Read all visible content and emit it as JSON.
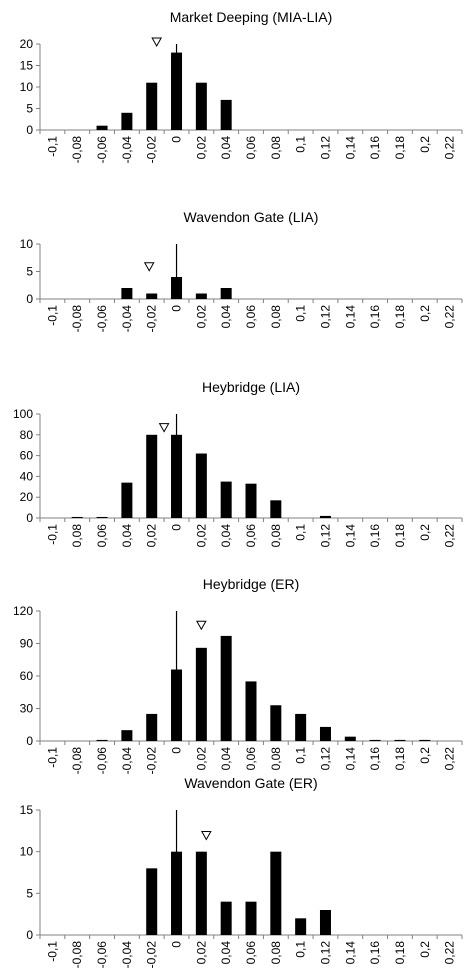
{
  "chart_data": [
    {
      "type": "bar",
      "title": "Market Deeping (MIA-LIA)",
      "categories": [
        "-0,1",
        "-0,08",
        "-0,06",
        "-0,04",
        "-0,02",
        "0",
        "0,02",
        "0,04",
        "0,06",
        "0,08",
        "0,1",
        "0,12",
        "0,14",
        "0,16",
        "0,18",
        "0,2",
        "0,22"
      ],
      "values": [
        0,
        0,
        1,
        4,
        11,
        18,
        11,
        7,
        0,
        0,
        0,
        0,
        0,
        0,
        0,
        0,
        0
      ],
      "ylim": [
        0,
        20
      ],
      "yticks": [
        "0",
        "5",
        "10",
        "15",
        "20"
      ],
      "vertical_line_category": "0",
      "vertical_line_top": 20,
      "triangle_marker": {
        "x_category_pos": 4.7,
        "value": 20
      },
      "grid": false
    },
    {
      "type": "bar",
      "title": "Wavendon Gate (LIA)",
      "categories": [
        "-0,1",
        "-0,08",
        "-0,06",
        "-0,04",
        "-0,02",
        "0",
        "0,02",
        "0,04",
        "0,06",
        "0,08",
        "0,1",
        "0,12",
        "0,14",
        "0,16",
        "0,18",
        "0,2",
        "0,22"
      ],
      "values": [
        0,
        0,
        0,
        2,
        1,
        4,
        1,
        2,
        0,
        0,
        0,
        0,
        0,
        0,
        0,
        0,
        0
      ],
      "ylim": [
        0,
        10
      ],
      "yticks": [
        "0",
        "5",
        "10"
      ],
      "vertical_line_category": "0",
      "vertical_line_top": 10,
      "triangle_marker": {
        "x_category_pos": 4.4,
        "value": 5.5
      },
      "grid": false
    },
    {
      "type": "bar",
      "title": "Heybridge (LIA)",
      "categories": [
        "-0,1",
        "0,08",
        "0,06",
        "0,04",
        "0,02",
        "0",
        "0,02",
        "0,04",
        "0,06",
        "0,08",
        "0,1",
        "0,12",
        "0,14",
        "0,16",
        "0,18",
        "0,2",
        "0,22"
      ],
      "values": [
        0,
        1,
        1,
        34,
        80,
        80,
        62,
        35,
        33,
        17,
        0,
        2,
        0,
        0,
        0,
        0,
        0
      ],
      "ylim": [
        0,
        100
      ],
      "yticks": [
        "0",
        "20",
        "40",
        "60",
        "80",
        "100"
      ],
      "vertical_line_category": "0",
      "vertical_line_top": 100,
      "triangle_marker": {
        "x_category_pos": 5.0,
        "value": 85
      },
      "grid": false
    },
    {
      "type": "bar",
      "title": "Heybridge (ER)",
      "categories": [
        "-0,1",
        "-0,08",
        "-0,06",
        "-0,04",
        "-0,02",
        "0",
        "0,02",
        "0,04",
        "0,06",
        "0,08",
        "0,1",
        "0,12",
        "0,14",
        "0,16",
        "0,18",
        "0,2",
        "0,22"
      ],
      "values": [
        0,
        0,
        1,
        10,
        25,
        66,
        86,
        97,
        55,
        33,
        25,
        13,
        4,
        1,
        1,
        1,
        0
      ],
      "ylim": [
        0,
        120
      ],
      "yticks": [
        "0",
        "30",
        "60",
        "90",
        "120"
      ],
      "vertical_line_category": "0",
      "vertical_line_top": 120,
      "triangle_marker": {
        "x_category_pos": 6.5,
        "value": 105
      },
      "grid": false
    },
    {
      "type": "bar",
      "title": "Wavendon Gate (ER)",
      "categories": [
        "-0,1",
        "-0,08",
        "-0,06",
        "-0,04",
        "-0,02",
        "0",
        "0,02",
        "0,04",
        "0,06",
        "0,08",
        "0,1",
        "0,12",
        "0,14",
        "0,16",
        "0,18",
        "0,2",
        "0,22"
      ],
      "values": [
        0,
        0,
        0,
        0,
        8,
        10,
        10,
        4,
        4,
        10,
        2,
        3,
        0,
        0,
        0,
        0,
        0
      ],
      "ylim": [
        0,
        15
      ],
      "yticks": [
        "0",
        "5",
        "10",
        "15"
      ],
      "vertical_line_category": "0",
      "vertical_line_top": 15,
      "triangle_marker": {
        "x_category_pos": 6.7,
        "value": 11.7
      },
      "grid": false
    }
  ]
}
